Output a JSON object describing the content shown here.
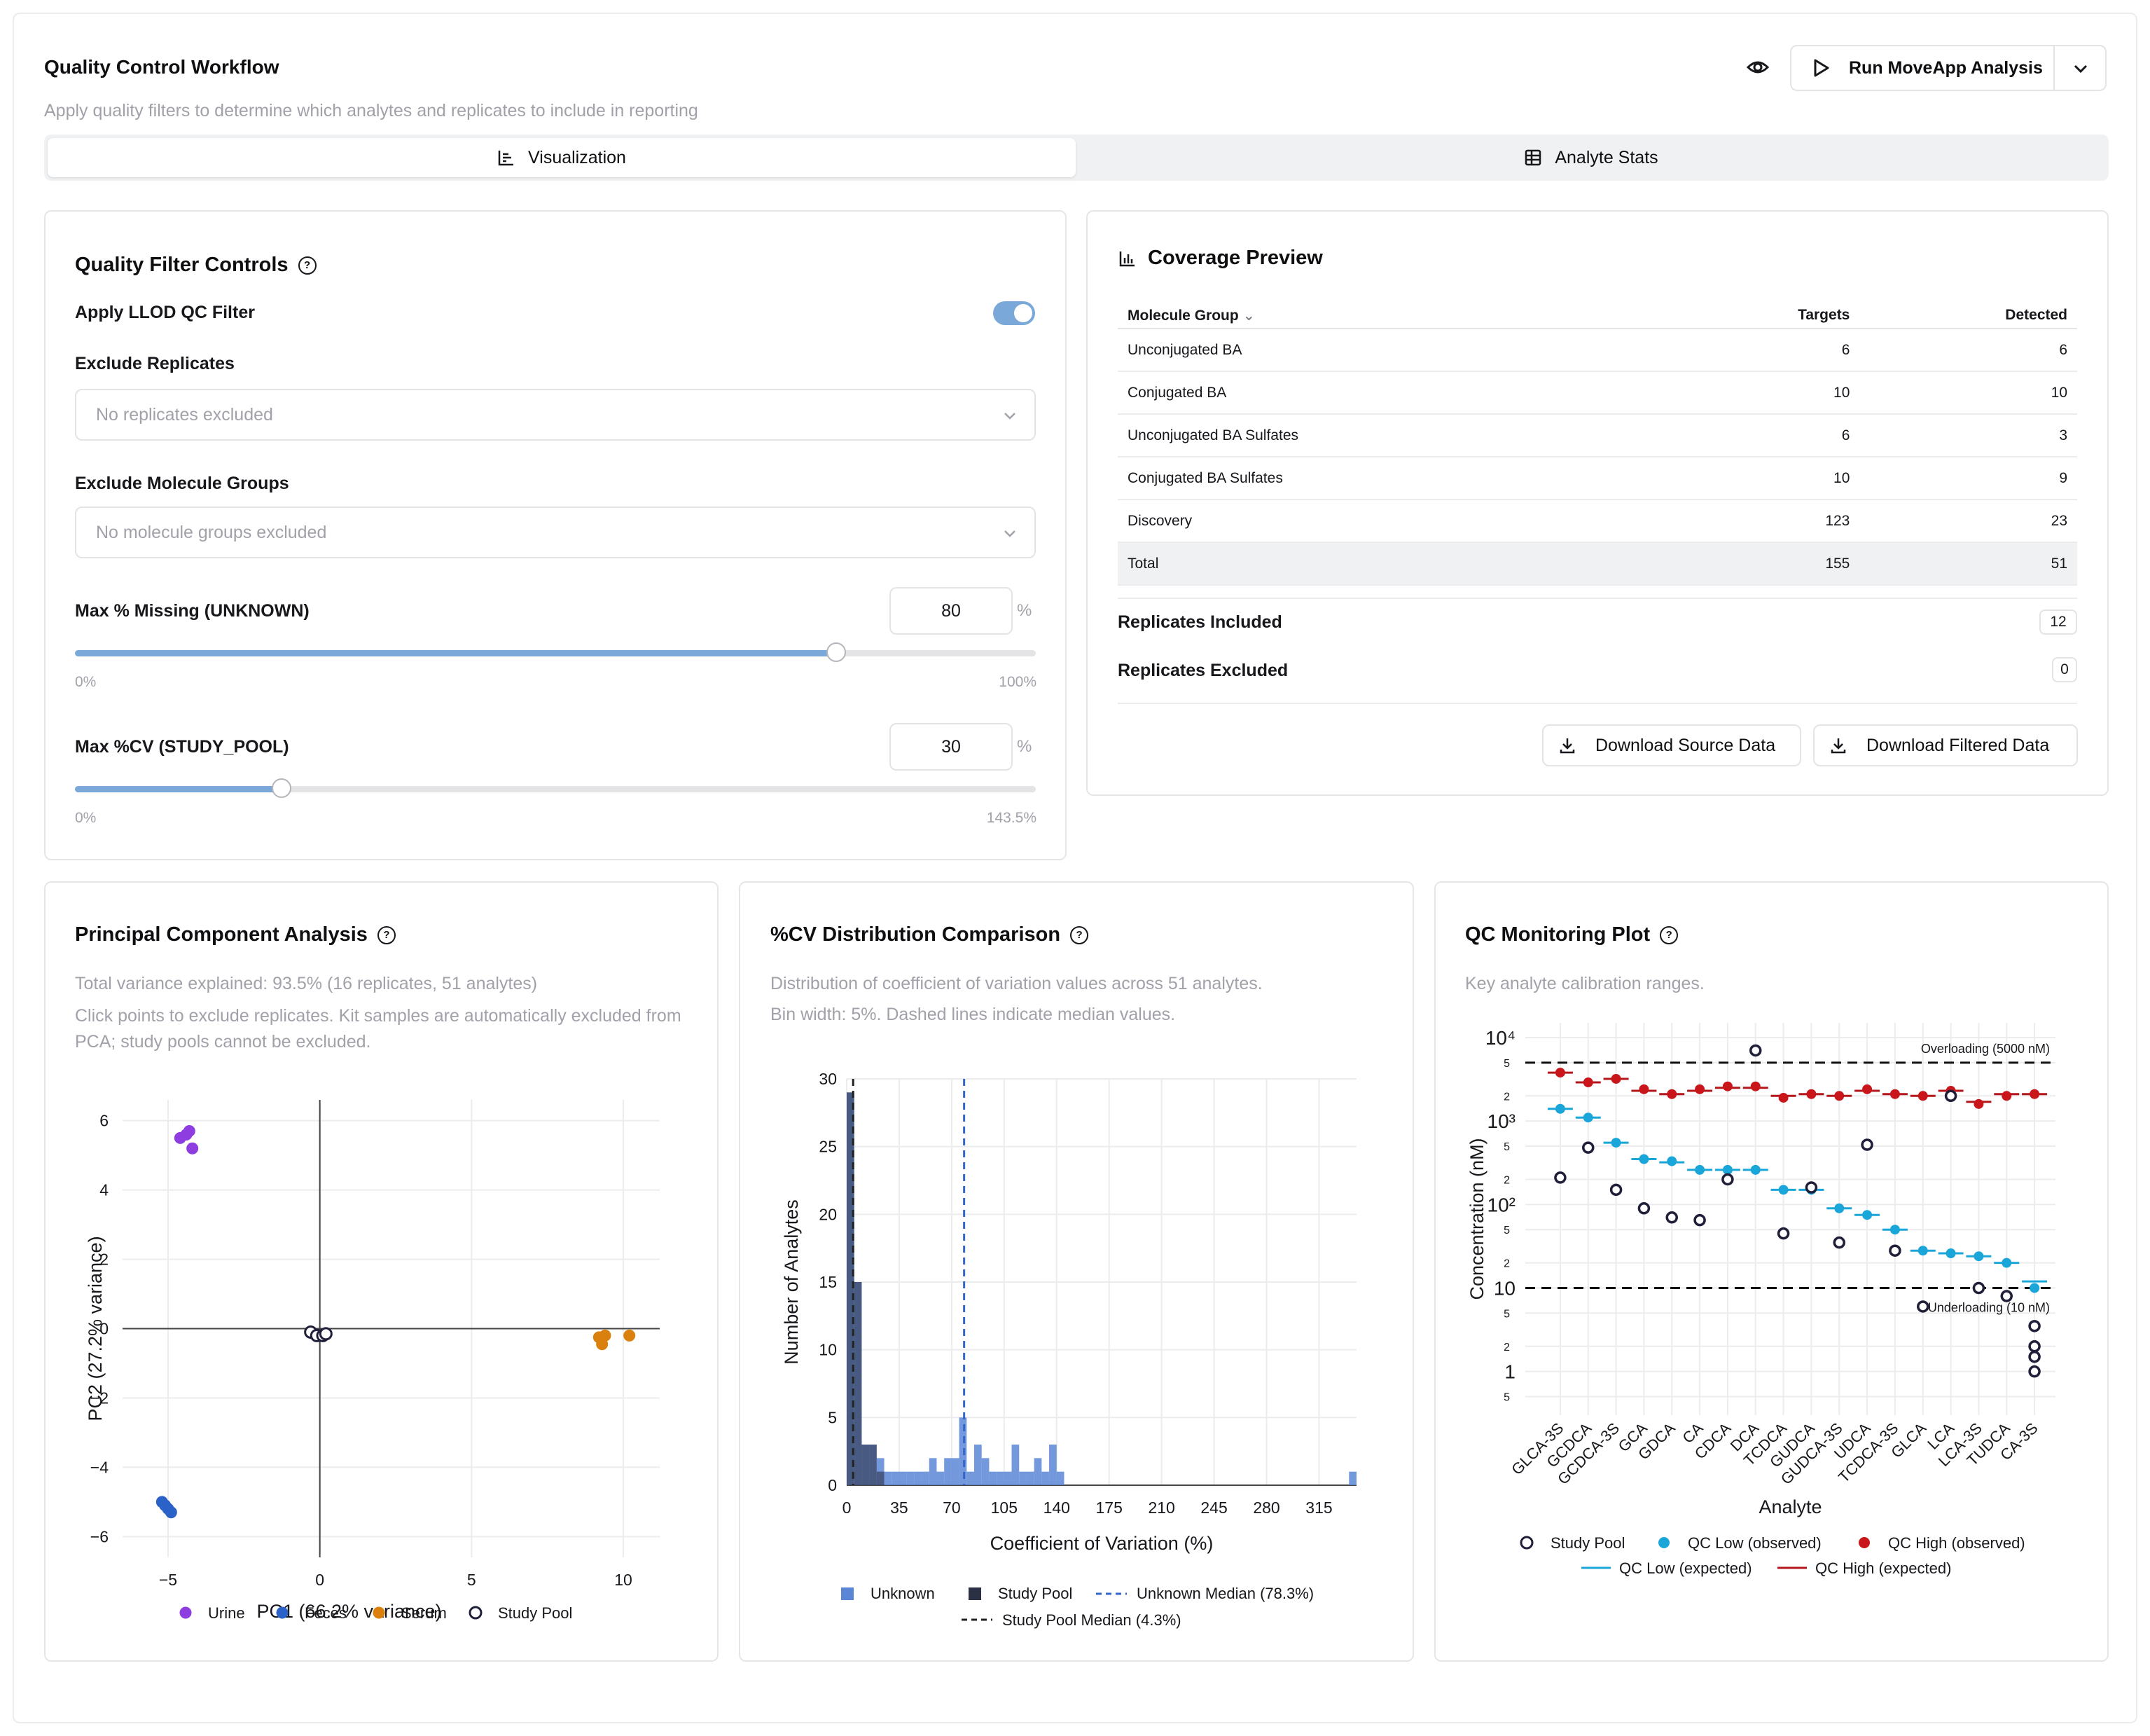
{
  "header": {
    "title": "Quality Control Workflow",
    "subtitle": "Apply quality filters to determine which analytes and replicates to include in reporting",
    "run_label": "Run MoveApp Analysis"
  },
  "tabs": [
    {
      "label": "Visualization",
      "active": true
    },
    {
      "label": "Analyte Stats",
      "active": false
    }
  ],
  "filters": {
    "title": "Quality Filter Controls",
    "llod_label": "Apply LLOD QC Filter",
    "llod_enabled": true,
    "exclude_replicates_label": "Exclude Replicates",
    "exclude_replicates_placeholder": "No replicates excluded",
    "exclude_groups_label": "Exclude Molecule Groups",
    "exclude_groups_placeholder": "No molecule groups excluded",
    "missing": {
      "label": "Max % Missing (UNKNOWN)",
      "value": "80",
      "unit": "%",
      "min": "0%",
      "max": "100%",
      "fraction": 0.8
    },
    "cv": {
      "label": "Max %CV (STUDY_POOL)",
      "value": "30",
      "unit": "%",
      "min": "0%",
      "max": "143.5%",
      "fraction": 0.209
    }
  },
  "coverage": {
    "title": "Coverage Preview",
    "columns": [
      "Molecule Group",
      "Targets",
      "Detected"
    ],
    "rows": [
      [
        "Unconjugated BA",
        "6",
        "6"
      ],
      [
        "Conjugated BA",
        "10",
        "10"
      ],
      [
        "Unconjugated BA Sulfates",
        "6",
        "3"
      ],
      [
        "Conjugated BA Sulfates",
        "10",
        "9"
      ],
      [
        "Discovery",
        "123",
        "23"
      ]
    ],
    "total": [
      "Total",
      "155",
      "51"
    ],
    "replicates_included_label": "Replicates Included",
    "replicates_included": "12",
    "replicates_excluded_label": "Replicates Excluded",
    "replicates_excluded": "0",
    "download_source": "Download Source Data",
    "download_filtered": "Download Filtered Data"
  },
  "pca": {
    "title": "Principal Component Analysis",
    "desc1": "Total variance explained: 93.5% (16 replicates, 51 analytes)",
    "desc2": "Click points to exclude replicates. Kit samples are automatically excluded from PCA; study pools cannot be excluded."
  },
  "cvdist": {
    "title": "%CV Distribution Comparison",
    "desc1": "Distribution of coefficient of variation values across 51 analytes.",
    "desc2": "Bin width: 5%. Dashed lines indicate median values."
  },
  "qcmon": {
    "title": "QC Monitoring Plot",
    "desc": "Key analyte calibration ranges."
  },
  "chart_data": [
    {
      "type": "scatter",
      "xlabel": "PC1 (66.2% variance)",
      "ylabel": "PC2 (27.2% variance)",
      "xlim": [
        -6.5,
        11.2
      ],
      "ylim": [
        -6.6,
        6.6
      ],
      "xticks": [
        -5,
        0,
        5,
        10
      ],
      "yticks": [
        -6,
        -4,
        -2,
        0,
        2,
        4,
        6
      ],
      "series": [
        {
          "name": "Urine",
          "color": "#8e3ee0",
          "points": [
            [
              -4.6,
              5.5
            ],
            [
              -4.4,
              5.6
            ],
            [
              -4.3,
              5.7
            ],
            [
              -4.2,
              5.2
            ]
          ]
        },
        {
          "name": "Feces",
          "color": "#2b62c8",
          "points": [
            [
              -5.2,
              -5.0
            ],
            [
              -5.1,
              -5.1
            ],
            [
              -5.0,
              -5.2
            ],
            [
              -4.9,
              -5.3
            ]
          ]
        },
        {
          "name": "Serum",
          "color": "#d9800f",
          "points": [
            [
              9.2,
              -0.25
            ],
            [
              9.4,
              -0.2
            ],
            [
              9.3,
              -0.45
            ],
            [
              10.2,
              -0.2
            ]
          ]
        },
        {
          "name": "Study Pool",
          "color": "#1f1f3a",
          "hollow": true,
          "points": [
            [
              -0.3,
              -0.1
            ],
            [
              -0.1,
              -0.2
            ],
            [
              0.1,
              -0.2
            ],
            [
              0.2,
              -0.15
            ]
          ]
        }
      ]
    },
    {
      "type": "bar",
      "xlabel": "Coefficient of Variation (%)",
      "ylabel": "Number of Analytes",
      "xlim": [
        0,
        340
      ],
      "ylim": [
        0,
        30
      ],
      "xticks": [
        0,
        35,
        70,
        105,
        140,
        175,
        210,
        245,
        280,
        315
      ],
      "yticks": [
        0,
        5,
        10,
        15,
        20,
        25,
        30
      ],
      "series": [
        {
          "name": "Unknown",
          "color": "#5b86d6",
          "bins": [
            [
              0,
              29
            ],
            [
              5,
              15
            ],
            [
              10,
              3
            ],
            [
              15,
              3
            ],
            [
              20,
              2
            ],
            [
              25,
              1
            ],
            [
              30,
              1
            ],
            [
              35,
              1
            ],
            [
              40,
              1
            ],
            [
              45,
              1
            ],
            [
              50,
              1
            ],
            [
              55,
              2
            ],
            [
              60,
              1
            ],
            [
              65,
              2
            ],
            [
              70,
              2
            ],
            [
              75,
              5
            ],
            [
              80,
              1
            ],
            [
              85,
              3
            ],
            [
              90,
              2
            ],
            [
              95,
              1
            ],
            [
              100,
              1
            ],
            [
              105,
              1
            ],
            [
              110,
              3
            ],
            [
              115,
              1
            ],
            [
              120,
              1
            ],
            [
              125,
              2
            ],
            [
              130,
              1
            ],
            [
              135,
              3
            ],
            [
              140,
              1
            ],
            [
              335,
              1
            ]
          ]
        },
        {
          "name": "Study Pool",
          "color": "#2c3044",
          "bins": [
            [
              0,
              29
            ],
            [
              5,
              15
            ],
            [
              10,
              3
            ],
            [
              15,
              3
            ],
            [
              20,
              1
            ]
          ]
        }
      ],
      "medians": [
        {
          "name": "Unknown Median (78.3%)",
          "value": 78.3,
          "color": "#3366cc"
        },
        {
          "name": "Study Pool Median (4.3%)",
          "value": 4.3,
          "color": "#222222"
        }
      ]
    },
    {
      "type": "scatter",
      "xlabel": "Analyte",
      "ylabel": "Concentration (nM)",
      "ylog": true,
      "ylim": [
        0.3,
        15000
      ],
      "categories": [
        "GLCA-3S",
        "GCDCA",
        "GCDCA-3S",
        "GCA",
        "GDCA",
        "CA",
        "CDCA",
        "DCA",
        "TCDCA",
        "GUDCA",
        "GUDCA-3S",
        "UDCA",
        "TCDCA-3S",
        "GLCA",
        "LCA",
        "LCA-3S",
        "TUDCA",
        "CA-3S"
      ],
      "thresholds": [
        {
          "label": "Overloading (5000 nM)",
          "value": 5000
        },
        {
          "label": "Underloading (10 nM)",
          "value": 10
        }
      ],
      "series": [
        {
          "name": "Study Pool",
          "values": [
            [
              210
            ],
            [
              480
            ],
            [
              150
            ],
            [
              90
            ],
            [
              70
            ],
            [
              65
            ],
            [
              200
            ],
            [
              7000
            ],
            [
              45
            ],
            [
              160
            ],
            [
              35
            ],
            [
              520
            ],
            [
              28
            ],
            [
              6
            ],
            [
              2000
            ],
            [
              10
            ],
            [
              8
            ],
            [
              3.5,
              2,
              1.5,
              1
            ]
          ]
        },
        {
          "name": "QC Low (observed)",
          "values": [
            1400,
            1100,
            550,
            350,
            330,
            260,
            260,
            260,
            150,
            150,
            90,
            75,
            50,
            28,
            26,
            24,
            20,
            10
          ]
        },
        {
          "name": "QC High (observed)",
          "values": [
            3800,
            2900,
            3200,
            2400,
            2100,
            2400,
            2600,
            2600,
            1900,
            2100,
            2000,
            2400,
            2100,
            2000,
            2300,
            1600,
            2000,
            2100
          ]
        },
        {
          "name": "QC Low (expected)",
          "values": [
            1400,
            1100,
            550,
            350,
            320,
            260,
            260,
            260,
            150,
            150,
            90,
            75,
            50,
            28,
            26,
            24,
            20,
            12
          ]
        },
        {
          "name": "QC High (expected)",
          "values": [
            3800,
            2900,
            3200,
            2300,
            2100,
            2300,
            2500,
            2500,
            2000,
            2100,
            2000,
            2300,
            2100,
            2000,
            2300,
            1700,
            2100,
            2100
          ]
        }
      ],
      "legend": [
        "Study Pool",
        "QC Low (observed)",
        "QC High (observed)",
        "QC Low (expected)",
        "QC High (expected)"
      ]
    }
  ]
}
